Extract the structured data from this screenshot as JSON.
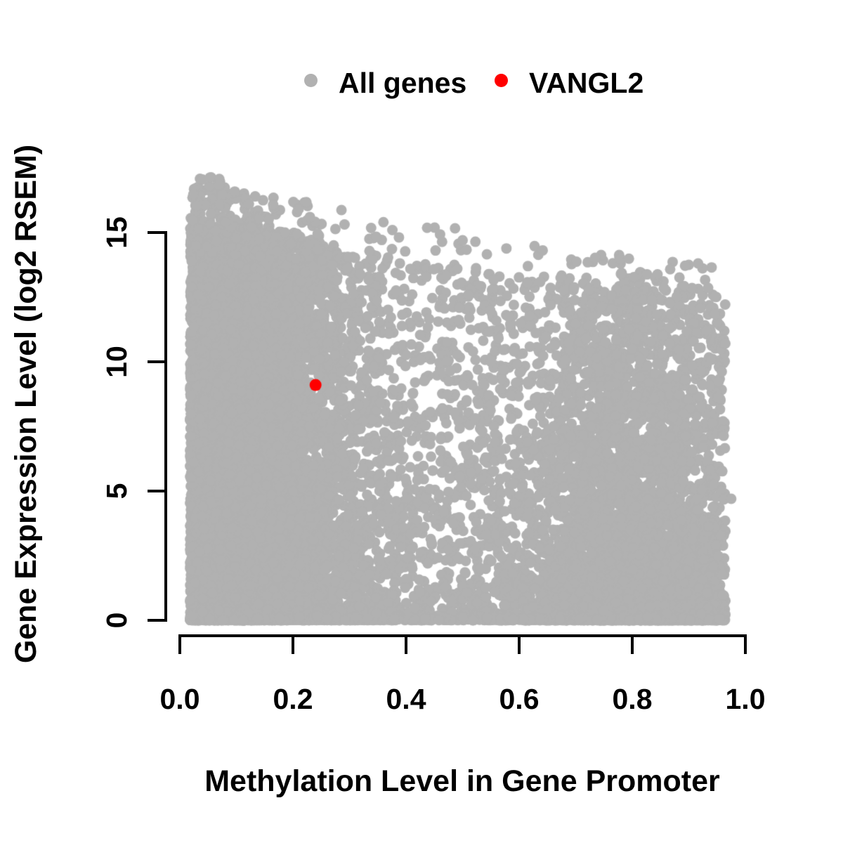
{
  "figure": {
    "background": "#ffffff"
  },
  "legend": {
    "items": [
      {
        "label": "All genes",
        "color": "#b1b1b1"
      },
      {
        "label": "VANGL2",
        "color": "#ff0000"
      }
    ]
  },
  "axes": {
    "x": {
      "title": "Methylation Level in Gene Promoter",
      "tick_labels": [
        "0.0",
        "0.2",
        "0.4",
        "0.6",
        "0.8",
        "1.0"
      ]
    },
    "y": {
      "title": "Gene Expression Level (log2 RSEM)",
      "tick_labels": [
        "0",
        "5",
        "10",
        "15"
      ]
    }
  },
  "chart_data": {
    "type": "scatter",
    "title": "",
    "xlabel": "Methylation Level in Gene Promoter",
    "ylabel": "Gene Expression Level (log2 RSEM)",
    "xlim": [
      0,
      1.05
    ],
    "ylim": [
      0,
      17.5
    ],
    "xticks": [
      0,
      0.2,
      0.4,
      0.6,
      0.8,
      1.0
    ],
    "yticks": [
      0,
      5,
      10,
      15
    ],
    "grid": false,
    "legend_position": "top-center",
    "series": [
      {
        "name": "All genes",
        "type": "dense-cloud",
        "color": "#b1b1b1",
        "marker_radius_px": 7.5,
        "n": 16000,
        "seed": 1234,
        "x_range_observed": [
          0.015,
          0.975
        ],
        "x_components": [
          {
            "type": "halfnormal",
            "weight": 0.52,
            "origin": 0.018,
            "sigma": 0.13
          },
          {
            "type": "powuniform",
            "weight": 0.26,
            "min": 0.04,
            "max": 0.95,
            "power": 1.0
          },
          {
            "type": "normal",
            "weight": 0.22,
            "mean": 0.8,
            "sigma": 0.1
          }
        ],
        "x_clip": [
          0.015,
          0.965
        ],
        "y_model": {
          "zero_fraction": 0.15,
          "zero_sigma": 0.12,
          "envelope_intercept": 15.25,
          "envelope_slope": -3.4,
          "pow_base": 1.05,
          "pow_slope": 1.35,
          "outlier_fraction": 0.02,
          "outlier_span_low_x": 2.1,
          "outlier_span": 1.7
        },
        "notable_points": [
          [
            0.04,
            17.05
          ],
          [
            0.07,
            16.1
          ],
          [
            0.23,
            15.6
          ],
          [
            0.36,
            15.4
          ],
          [
            0.5,
            14.7
          ],
          [
            0.78,
            13.4
          ],
          [
            0.975,
            4.7
          ]
        ],
        "description": "~16k genes: near-solid gray mass at low promoter methylation spanning expression 0-15.5, thinning and becoming bottom-heavy toward high methylation; upper envelope falls from ~15.5 at x=0 to ~11.5 at x=0.95; dense strip of zero-expression genes along the bottom for all methylation levels"
      },
      {
        "name": "VANGL2",
        "type": "points",
        "color": "#ff0000",
        "marker_radius_px": 8.5,
        "points": [
          [
            0.24,
            9.1
          ]
        ]
      }
    ]
  }
}
